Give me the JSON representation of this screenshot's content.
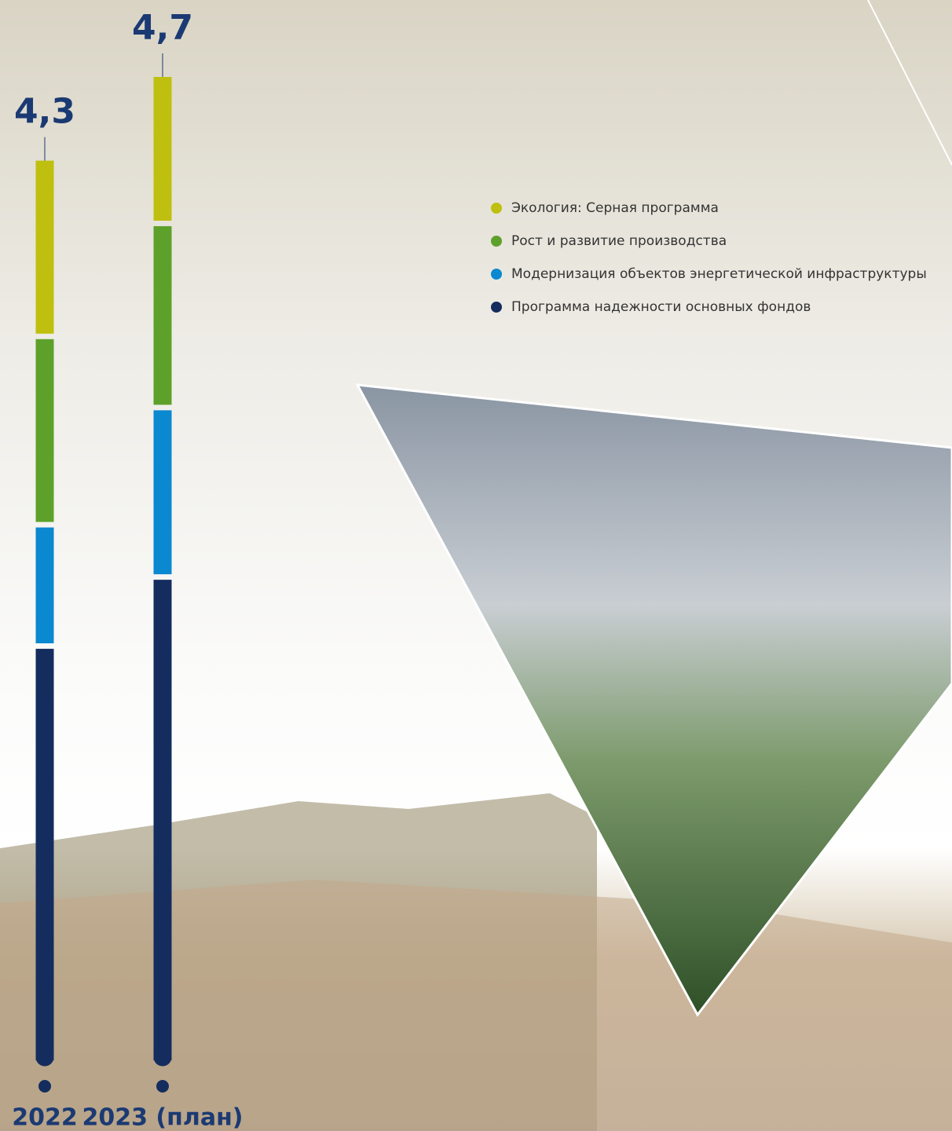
{
  "chart_data": {
    "type": "stacked-bar",
    "categories": [
      "2022",
      "2023 (план)"
    ],
    "totals": [
      4.3,
      4.7
    ],
    "total_labels": [
      "4,3",
      "4,7"
    ],
    "series": [
      {
        "name": "Программа надежности основных фондов",
        "color": "#142d5e",
        "values": [
          1.98,
          2.31
        ]
      },
      {
        "name": "Модернизация объектов энергетической инфраструктуры",
        "color": "#0a88d0",
        "values": [
          0.58,
          0.81
        ]
      },
      {
        "name": "Рост и развитие производства",
        "color": "#5da12a",
        "values": [
          0.9,
          0.88
        ]
      },
      {
        "name": "Экология: Серная программа",
        "color": "#bfbf0f",
        "values": [
          0.84,
          0.7
        ]
      }
    ]
  }
}
